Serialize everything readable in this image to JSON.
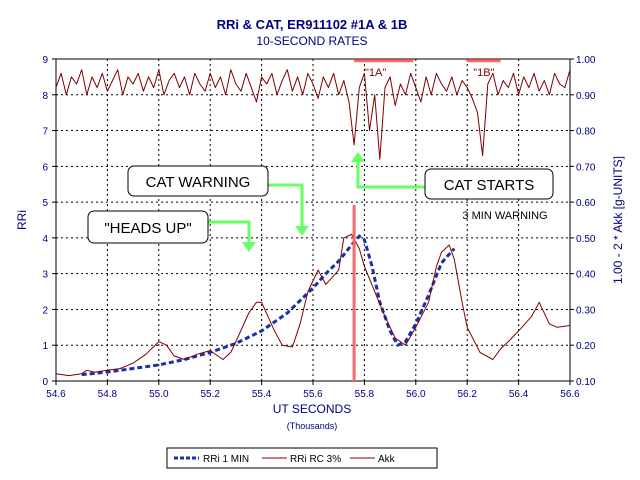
{
  "chart_data": {
    "type": "line",
    "title": "RRi & CAT, ER911102 #1A & 1B",
    "subtitle": "10-SECOND RATES",
    "xlabel": "UT SECONDS",
    "xlabel_sub": "(Thousands)",
    "ylabel_left": "RRi",
    "ylabel_right": "1.00 - 2 * Akk [g-UNITS]",
    "xlim": [
      54.6,
      56.6
    ],
    "ylim_left": [
      0,
      9
    ],
    "ylim_right": [
      0.1,
      1.0
    ],
    "grid": true,
    "legend_position": "bottom",
    "x_ticks": [
      "54.6",
      "54.8",
      "55.0",
      "55.2",
      "55.4",
      "55.6",
      "55.8",
      "56.0",
      "56.2",
      "56.4",
      "56.6"
    ],
    "y_left_ticks": [
      "0",
      "1",
      "2",
      "3",
      "4",
      "5",
      "6",
      "7",
      "8",
      "9"
    ],
    "y_right_ticks": [
      "0.10",
      "0.20",
      "0.30",
      "0.40",
      "0.50",
      "0.60",
      "0.70",
      "0.80",
      "0.90",
      "1.00"
    ],
    "series": [
      {
        "name": "RRi 1 MIN",
        "axis": "left",
        "color": "#1a2fb0",
        "style": "dashed",
        "x": [
          54.7,
          54.8,
          54.9,
          55.0,
          55.1,
          55.2,
          55.3,
          55.4,
          55.5,
          55.6,
          55.65,
          55.7,
          55.75,
          55.78,
          55.8,
          55.83,
          55.86,
          55.9,
          55.93,
          55.96,
          56.0,
          56.05,
          56.1,
          56.15
        ],
        "y": [
          0.18,
          0.25,
          0.35,
          0.45,
          0.6,
          0.8,
          1.05,
          1.4,
          1.9,
          2.6,
          3.0,
          3.35,
          3.8,
          4.05,
          3.95,
          3.2,
          2.2,
          1.4,
          1.0,
          1.1,
          1.6,
          2.4,
          3.3,
          3.7
        ]
      },
      {
        "name": "RRi RC 3%",
        "axis": "left",
        "color": "#800000",
        "style": "solid",
        "x": [
          54.6,
          54.65,
          54.7,
          54.72,
          54.75,
          54.8,
          54.85,
          54.9,
          54.95,
          55.0,
          55.03,
          55.06,
          55.1,
          55.15,
          55.2,
          55.25,
          55.28,
          55.3,
          55.35,
          55.38,
          55.4,
          55.45,
          55.48,
          55.52,
          55.55,
          55.58,
          55.62,
          55.65,
          55.7,
          55.72,
          55.75,
          55.78,
          55.8,
          55.84,
          55.88,
          55.92,
          55.96,
          56.0,
          56.05,
          56.08,
          56.1,
          56.13,
          56.15,
          56.18,
          56.2,
          56.25,
          56.3,
          56.33,
          56.36,
          56.4,
          56.45,
          56.48,
          56.52,
          56.55,
          56.6
        ],
        "y": [
          0.2,
          0.15,
          0.2,
          0.3,
          0.25,
          0.3,
          0.35,
          0.5,
          0.75,
          1.1,
          1.0,
          0.7,
          0.6,
          0.75,
          0.85,
          0.6,
          0.8,
          1.1,
          1.9,
          2.2,
          2.2,
          1.4,
          1.0,
          0.95,
          1.6,
          2.5,
          3.1,
          2.7,
          3.1,
          4.0,
          4.1,
          3.7,
          3.2,
          2.5,
          1.8,
          1.2,
          1.0,
          1.5,
          2.2,
          3.2,
          3.6,
          3.8,
          3.4,
          2.2,
          1.5,
          0.8,
          0.6,
          0.9,
          1.1,
          1.4,
          1.8,
          2.2,
          1.6,
          1.5,
          1.55
        ]
      },
      {
        "name": "Akk",
        "axis": "right",
        "color": "#800000",
        "style": "solid",
        "x": [
          54.6,
          54.62,
          54.64,
          54.66,
          54.68,
          54.7,
          54.72,
          54.74,
          54.76,
          54.78,
          54.8,
          54.82,
          54.84,
          54.86,
          54.88,
          54.9,
          54.92,
          54.94,
          54.96,
          54.98,
          55.0,
          55.02,
          55.04,
          55.06,
          55.08,
          55.1,
          55.12,
          55.14,
          55.16,
          55.18,
          55.2,
          55.22,
          55.24,
          55.26,
          55.28,
          55.3,
          55.32,
          55.34,
          55.36,
          55.38,
          55.4,
          55.42,
          55.44,
          55.46,
          55.48,
          55.5,
          55.52,
          55.54,
          55.56,
          55.58,
          55.6,
          55.62,
          55.64,
          55.66,
          55.68,
          55.7,
          55.72,
          55.74,
          55.76,
          55.78,
          55.8,
          55.82,
          55.84,
          55.86,
          55.88,
          55.9,
          55.92,
          55.94,
          55.96,
          55.98,
          56.0,
          56.02,
          56.04,
          56.06,
          56.08,
          56.1,
          56.12,
          56.14,
          56.16,
          56.18,
          56.2,
          56.22,
          56.24,
          56.26,
          56.28,
          56.3,
          56.32,
          56.34,
          56.36,
          56.38,
          56.4,
          56.42,
          56.44,
          56.46,
          56.48,
          56.5,
          56.52,
          56.54,
          56.56,
          56.58,
          56.6
        ],
        "y": [
          0.92,
          0.96,
          0.9,
          0.95,
          0.93,
          0.97,
          0.9,
          0.95,
          0.92,
          0.96,
          0.91,
          0.94,
          0.97,
          0.9,
          0.95,
          0.93,
          0.96,
          0.91,
          0.95,
          0.92,
          0.97,
          0.9,
          0.94,
          0.96,
          0.92,
          0.95,
          0.9,
          0.96,
          0.93,
          0.91,
          0.96,
          0.92,
          0.95,
          0.9,
          0.97,
          0.93,
          0.91,
          0.96,
          0.92,
          0.88,
          0.95,
          0.93,
          0.96,
          0.9,
          0.94,
          0.97,
          0.91,
          0.95,
          0.9,
          0.96,
          0.93,
          0.89,
          0.95,
          0.92,
          0.96,
          0.9,
          0.94,
          0.88,
          0.76,
          0.92,
          0.96,
          0.8,
          0.9,
          0.72,
          0.92,
          0.95,
          0.87,
          0.93,
          0.9,
          0.96,
          0.92,
          0.88,
          0.95,
          0.9,
          0.96,
          0.93,
          0.91,
          0.95,
          0.9,
          0.94,
          0.92,
          0.89,
          0.85,
          0.73,
          0.93,
          0.96,
          0.9,
          0.94,
          0.92,
          0.96,
          0.9,
          0.95,
          0.92,
          0.96,
          0.91,
          0.94,
          0.9,
          0.96,
          0.93,
          0.92,
          0.97
        ]
      }
    ],
    "legend": [
      "RRi 1 MIN",
      "RRi RC 3%",
      "Akk"
    ],
    "markers": {
      "vertical_line_x": 55.76,
      "bar_1a": {
        "label": "\"1A\"",
        "x_start": 55.76,
        "x_end": 55.99,
        "y": 0.995
      },
      "bar_1b": {
        "label": "\"1B\"",
        "x_start": 56.2,
        "x_end": 56.33,
        "y": 0.995
      }
    },
    "annotations": {
      "cat_warning": "CAT WARNING",
      "heads_up": "\"HEADS UP\"",
      "cat_starts": "CAT STARTS",
      "three_min_warning": "3 MIN WARNING"
    },
    "colors": {
      "text": "#000080",
      "grid": "#000000",
      "arrow": "#66ff66",
      "marker": "#ff6666",
      "dashed": "#1a2fb0",
      "line": "#800000"
    }
  }
}
